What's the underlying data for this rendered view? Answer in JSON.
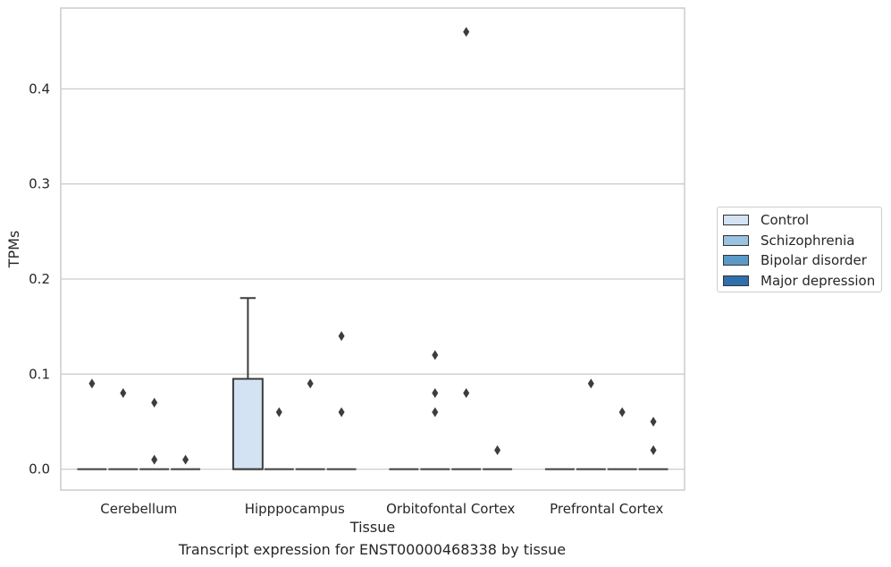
{
  "chart_data": {
    "type": "box",
    "xlabel": "Tissue",
    "ylabel": "TPMs",
    "caption": "Transcript expression for ENST00000468338 by tissue",
    "ylim": [
      -0.022,
      0.485
    ],
    "yticks": [
      0.0,
      0.1,
      0.2,
      0.3,
      0.4
    ],
    "ytick_labels": [
      "0.0",
      "0.1",
      "0.2",
      "0.3",
      "0.4"
    ],
    "grid": "horizontal",
    "legend_position": "right",
    "categories": [
      "Cerebellum",
      "Hipppocampus",
      "Orbitofontal Cortex",
      "Prefrontal Cortex"
    ],
    "series": [
      {
        "name": "Control",
        "color": "#d4e3f3",
        "boxes": [
          {
            "q1": 0.0,
            "median": 0.0,
            "q3": 0.0,
            "whisker_low": 0.0,
            "whisker_high": 0.0,
            "outliers": [
              0.09
            ]
          },
          {
            "q1": 0.0,
            "median": 0.0,
            "q3": 0.095,
            "whisker_low": 0.0,
            "whisker_high": 0.18,
            "outliers": []
          },
          {
            "q1": 0.0,
            "median": 0.0,
            "q3": 0.0,
            "whisker_low": 0.0,
            "whisker_high": 0.0,
            "outliers": []
          },
          {
            "q1": 0.0,
            "median": 0.0,
            "q3": 0.0,
            "whisker_low": 0.0,
            "whisker_high": 0.0,
            "outliers": []
          }
        ]
      },
      {
        "name": "Schizophrenia",
        "color": "#9ac3df",
        "boxes": [
          {
            "q1": 0.0,
            "median": 0.0,
            "q3": 0.0,
            "whisker_low": 0.0,
            "whisker_high": 0.0,
            "outliers": [
              0.08
            ]
          },
          {
            "q1": 0.0,
            "median": 0.0,
            "q3": 0.0,
            "whisker_low": 0.0,
            "whisker_high": 0.0,
            "outliers": [
              0.06
            ]
          },
          {
            "q1": 0.0,
            "median": 0.0,
            "q3": 0.0,
            "whisker_low": 0.0,
            "whisker_high": 0.0,
            "outliers": [
              0.06,
              0.08,
              0.12
            ]
          },
          {
            "q1": 0.0,
            "median": 0.0,
            "q3": 0.0,
            "whisker_low": 0.0,
            "whisker_high": 0.0,
            "outliers": [
              0.09
            ]
          }
        ]
      },
      {
        "name": "Bipolar disorder",
        "color": "#5a9ac9",
        "boxes": [
          {
            "q1": 0.0,
            "median": 0.0,
            "q3": 0.0,
            "whisker_low": 0.0,
            "whisker_high": 0.0,
            "outliers": [
              0.01,
              0.07
            ]
          },
          {
            "q1": 0.0,
            "median": 0.0,
            "q3": 0.0,
            "whisker_low": 0.0,
            "whisker_high": 0.0,
            "outliers": [
              0.09
            ]
          },
          {
            "q1": 0.0,
            "median": 0.0,
            "q3": 0.0,
            "whisker_low": 0.0,
            "whisker_high": 0.0,
            "outliers": [
              0.08,
              0.46
            ]
          },
          {
            "q1": 0.0,
            "median": 0.0,
            "q3": 0.0,
            "whisker_low": 0.0,
            "whisker_high": 0.0,
            "outliers": [
              0.06
            ]
          }
        ]
      },
      {
        "name": "Major depression",
        "color": "#2f6fab",
        "boxes": [
          {
            "q1": 0.0,
            "median": 0.0,
            "q3": 0.0,
            "whisker_low": 0.0,
            "whisker_high": 0.0,
            "outliers": [
              0.01
            ]
          },
          {
            "q1": 0.0,
            "median": 0.0,
            "q3": 0.0,
            "whisker_low": 0.0,
            "whisker_high": 0.0,
            "outliers": [
              0.06,
              0.14
            ]
          },
          {
            "q1": 0.0,
            "median": 0.0,
            "q3": 0.0,
            "whisker_low": 0.0,
            "whisker_high": 0.0,
            "outliers": [
              0.02
            ]
          },
          {
            "q1": 0.0,
            "median": 0.0,
            "q3": 0.0,
            "whisker_low": 0.0,
            "whisker_high": 0.0,
            "outliers": [
              0.02,
              0.05
            ]
          }
        ]
      }
    ]
  }
}
